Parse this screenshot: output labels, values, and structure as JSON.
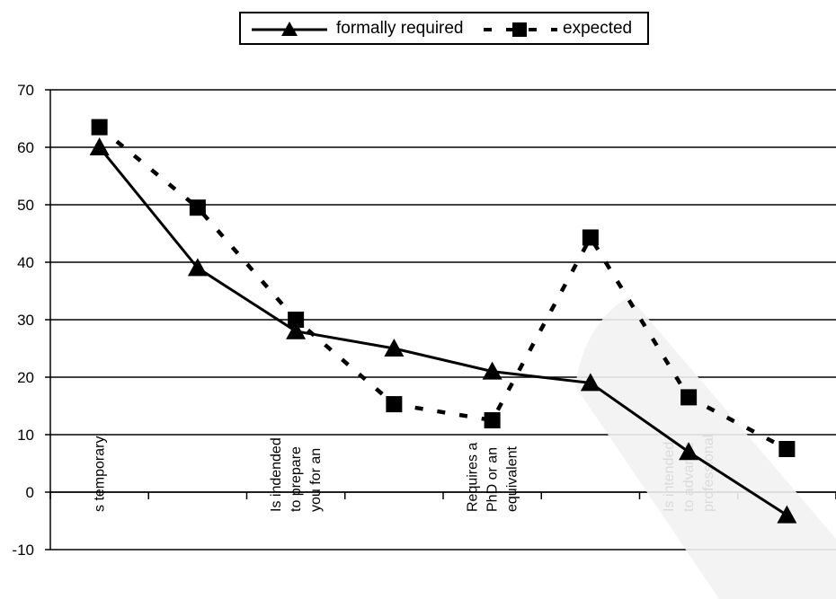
{
  "chart_data": {
    "type": "line",
    "categories": [
      "s temporary",
      "",
      "Is indended to prepare you for an",
      "",
      "Requires a PhD or an equivalent",
      "",
      "Is intended to advance professional",
      ""
    ],
    "category_lines": [
      [
        "s temporary"
      ],
      [],
      [
        "Is indended",
        "to prepare",
        "you for an"
      ],
      [],
      [
        "Requires a",
        "PhD or an",
        "equivalent"
      ],
      [],
      [
        "Is intended",
        "to advance",
        "professional"
      ],
      []
    ],
    "ylim": [
      -10,
      70
    ],
    "yticks": [
      -10,
      0,
      10,
      20,
      30,
      40,
      50,
      60,
      70
    ],
    "grid": true,
    "legend_position": "top-center",
    "series": [
      {
        "name": "formally required",
        "marker": "triangle",
        "style": "solid",
        "color": "#000000",
        "values": [
          60,
          39,
          28,
          25,
          21,
          19,
          7,
          -4
        ]
      },
      {
        "name": "expected",
        "marker": "square",
        "style": "dashed",
        "color": "#000000",
        "values": [
          63.5,
          49.5,
          30,
          15.3,
          12.5,
          44.3,
          16.5,
          7.5
        ]
      }
    ]
  }
}
